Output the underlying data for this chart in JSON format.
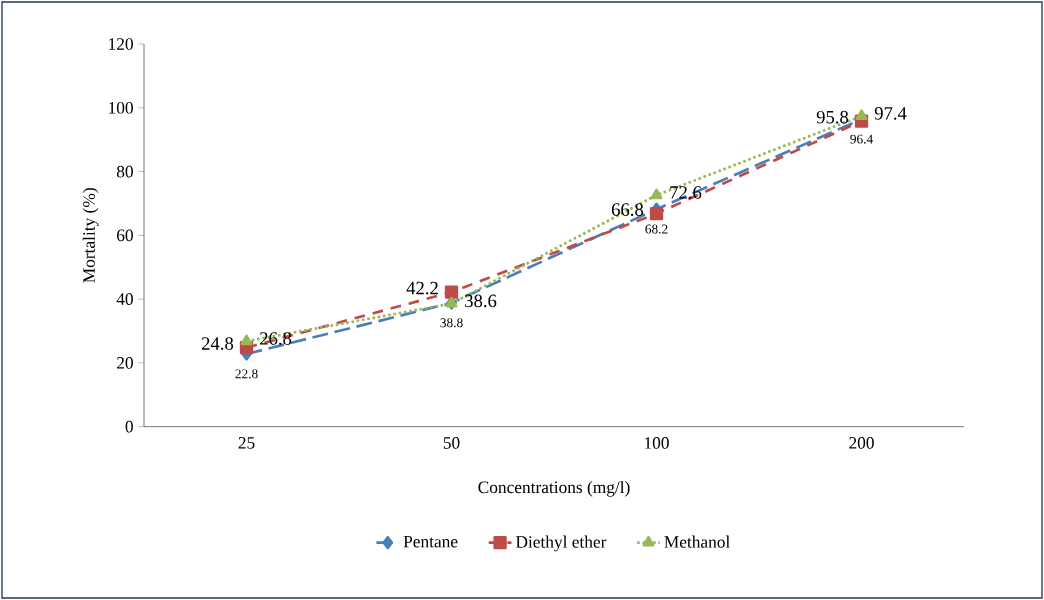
{
  "chart_data": {
    "type": "line",
    "xlabel": "Concentrations (mg/l)",
    "ylabel": "Mortality (%)",
    "categories": [
      "25",
      "50",
      "100",
      "200"
    ],
    "series": [
      {
        "name": "Pentane",
        "color": "#4a7ebb",
        "values": [
          22.8,
          38.8,
          68.2,
          96.4
        ],
        "marker": "diamond",
        "line_style": "dashed"
      },
      {
        "name": "Diethyl ether",
        "color": "#be4b48",
        "values": [
          24.8,
          42.2,
          66.8,
          95.8
        ],
        "marker": "square",
        "line_style": "dashed"
      },
      {
        "name": "Methanol",
        "color": "#98b954",
        "values": [
          26.8,
          38.6,
          72.6,
          97.4
        ],
        "marker": "triangle",
        "line_style": "dotted"
      }
    ],
    "ylim": [
      0,
      120
    ],
    "yticks": [
      0,
      20,
      40,
      60,
      80,
      100,
      120
    ],
    "data_labels": true,
    "legend": "bottom",
    "grid": false
  }
}
